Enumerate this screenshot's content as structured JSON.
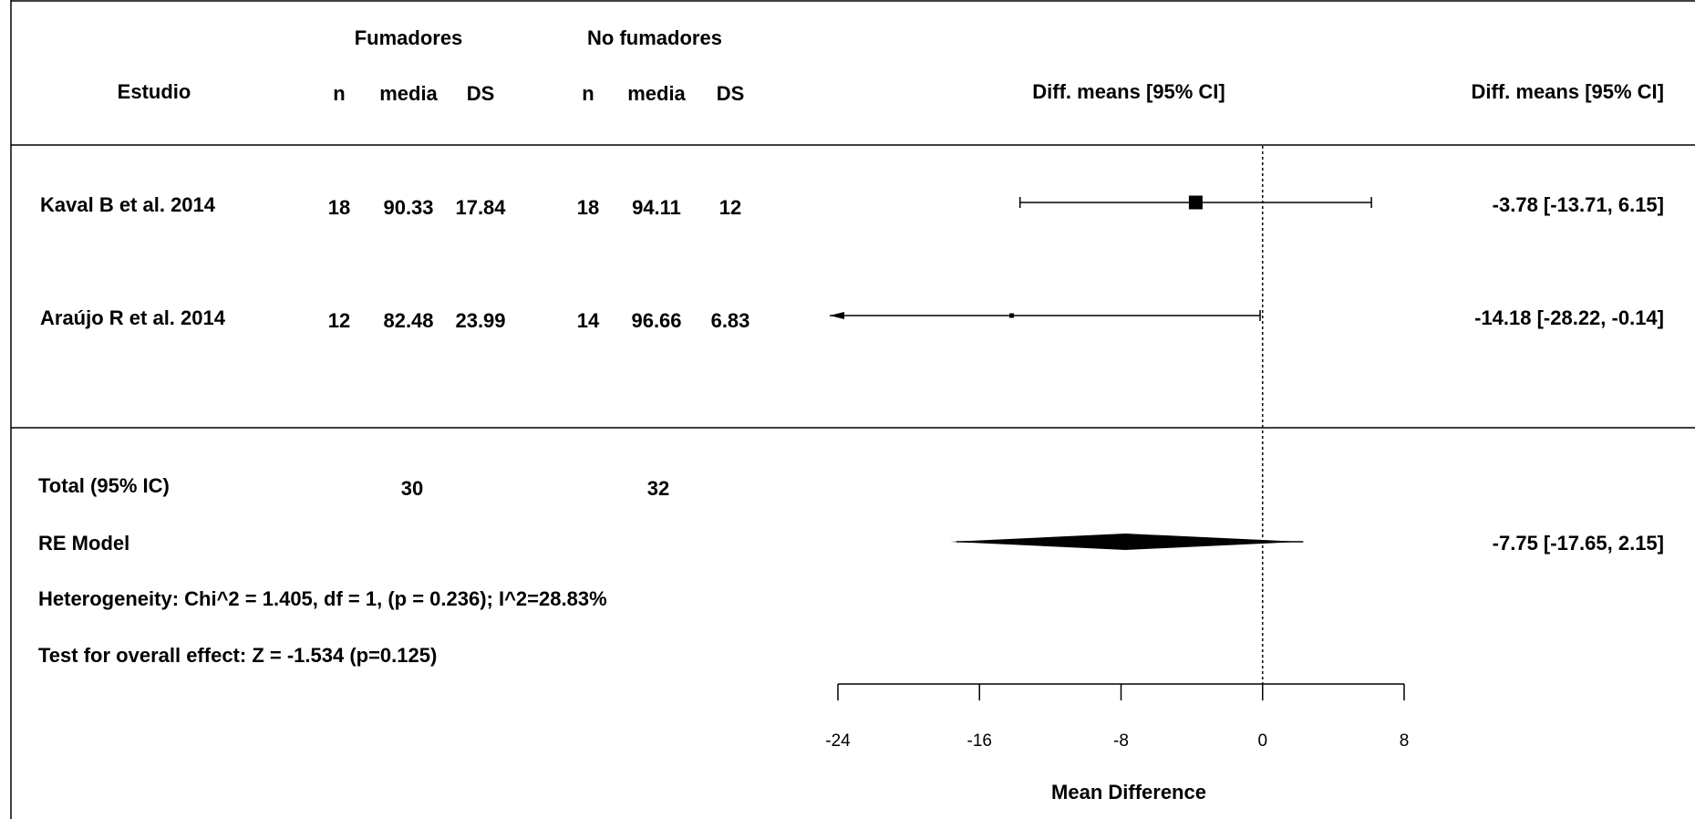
{
  "chart_data": {
    "type": "forest",
    "group_headers": [
      "Fumadores",
      "No fumadores"
    ],
    "columns": {
      "study": "Estudio",
      "n": "n",
      "mean": "media",
      "sd": "DS",
      "effect": "Diff. means [95% CI]"
    },
    "studies": [
      {
        "name": "Kaval B et al. 2014",
        "smokers": {
          "n": "18",
          "mean": "90.33",
          "sd": "17.84"
        },
        "nonsmokers": {
          "n": "18",
          "mean": "94.11",
          "sd": "12"
        },
        "estimate": -3.78,
        "lower": -13.71,
        "upper": 6.15,
        "ci_text": "-3.78 [-13.71,  6.15]"
      },
      {
        "name": "Araújo R et al. 2014",
        "smokers": {
          "n": "12",
          "mean": "82.48",
          "sd": "23.99"
        },
        "nonsmokers": {
          "n": "14",
          "mean": "96.66",
          "sd": "6.83"
        },
        "estimate": -14.18,
        "lower": -28.22,
        "upper": -0.14,
        "ci_text": "-14.18 [-28.22, -0.14]"
      }
    ],
    "total": {
      "label": "Total (95% IC)",
      "smokers_n": "30",
      "nonsmokers_n": "32"
    },
    "pooled": {
      "label": "RE Model",
      "estimate": -7.75,
      "lower": -17.65,
      "upper": 2.15,
      "pi_lower": -17.3,
      "pi_upper": 2.3,
      "ci_text": "-7.75 [-17.65,  2.15]"
    },
    "heterogeneity_text": "Heterogeneity: Chi^2 = 1.405, df = 1, (p = 0.236); I^2=28.83%",
    "overall_effect_text": "Test for overall effect: Z = -1.534 (p=0.125)",
    "x_axis": {
      "label": "Mean Difference",
      "ticks": [
        -24,
        -16,
        -8,
        0,
        8
      ],
      "xlim": [
        -24,
        8
      ],
      "reference_line": 0
    }
  }
}
